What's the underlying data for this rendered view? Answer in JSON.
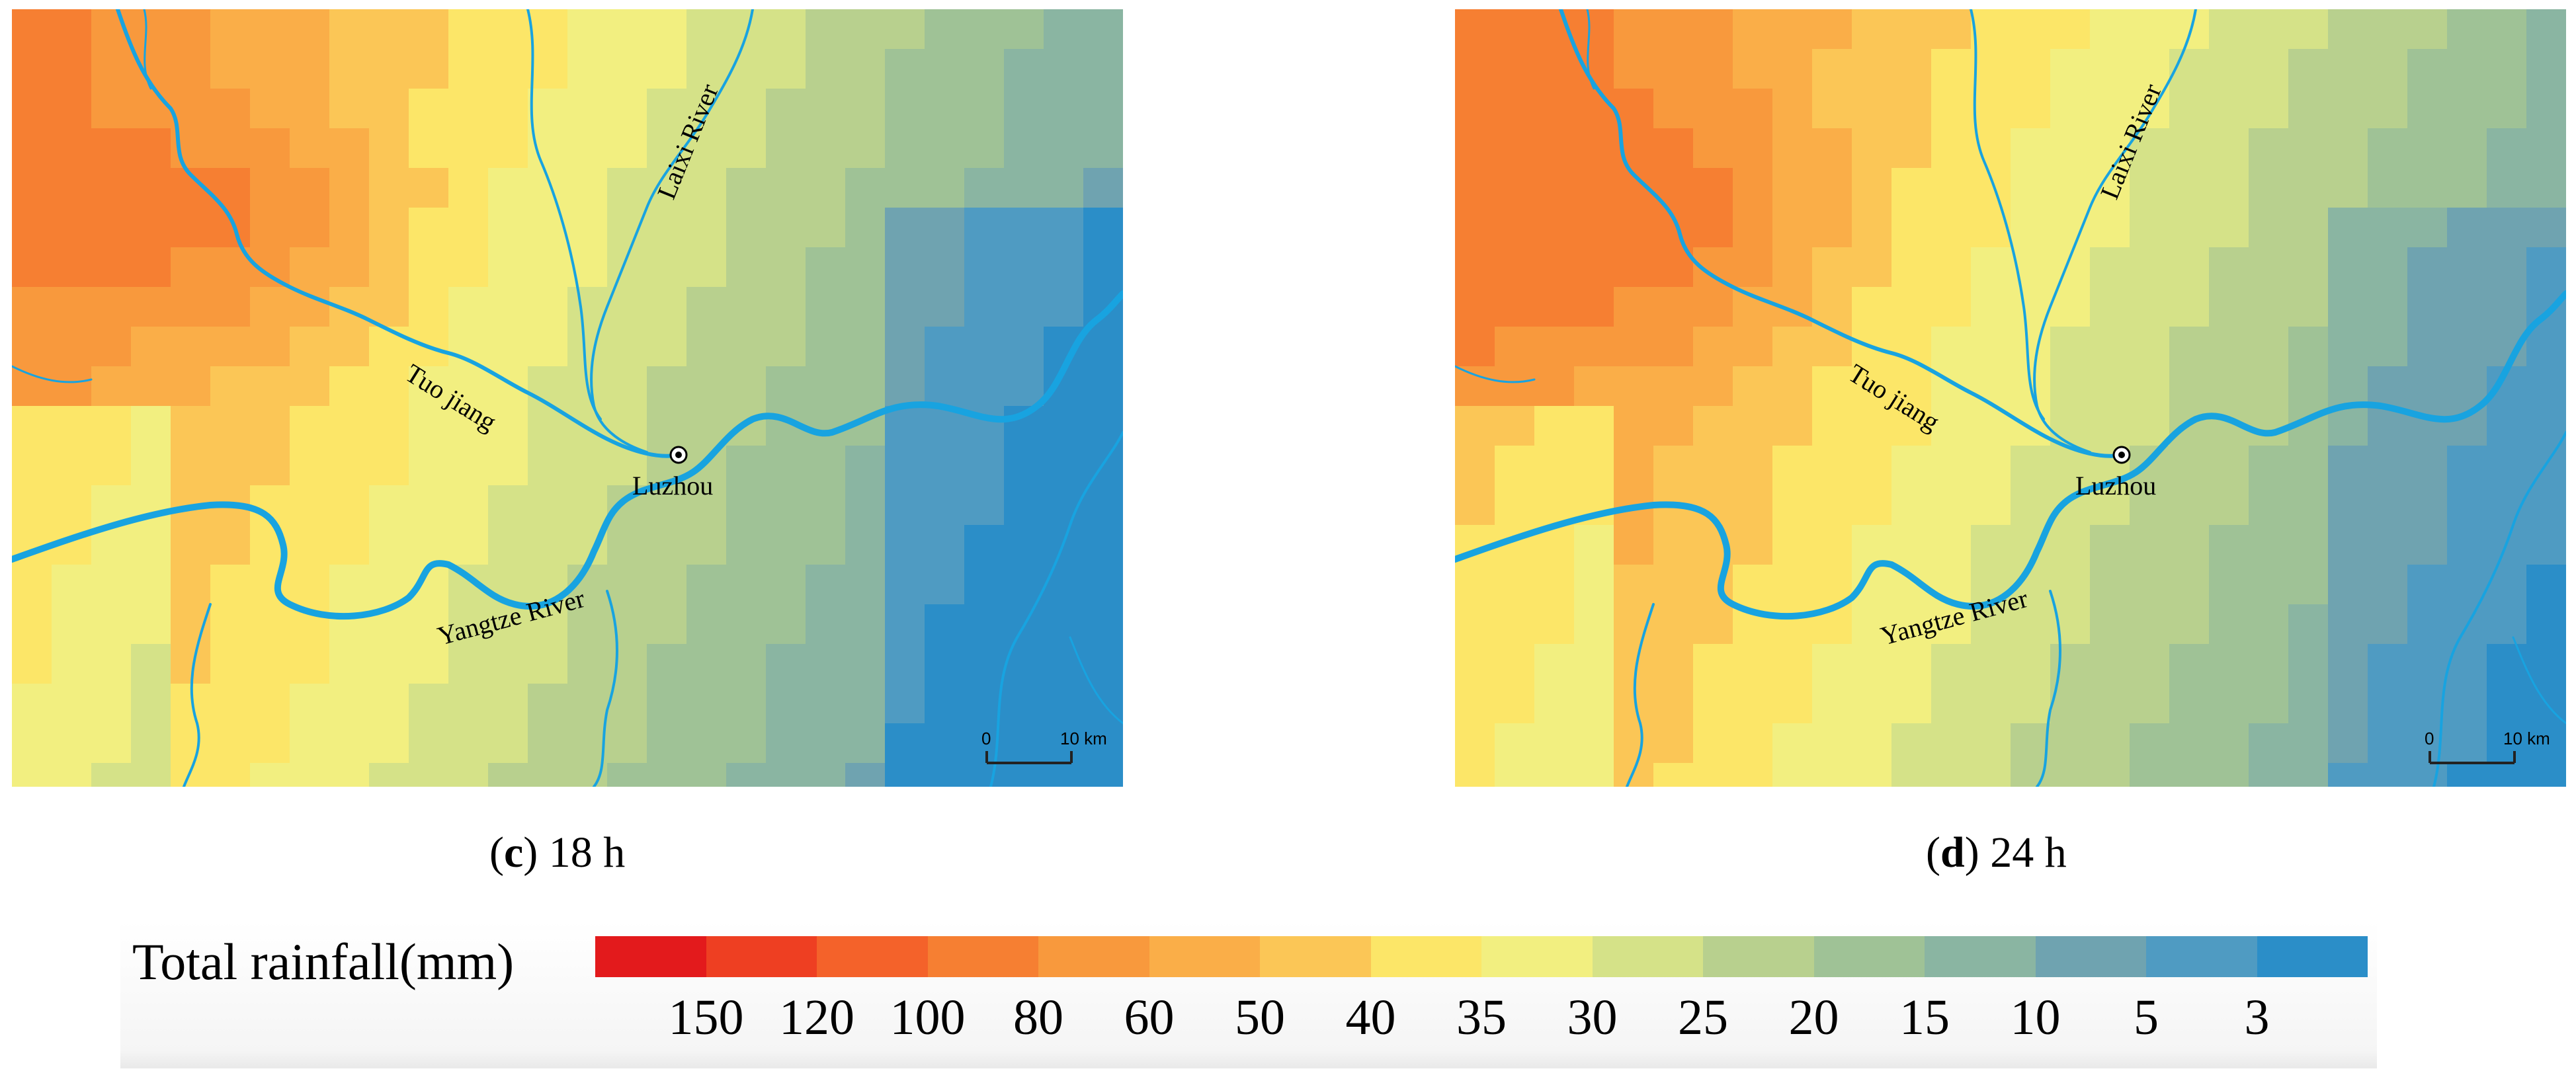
{
  "panels": [
    {
      "id": "c",
      "letter": "c",
      "time": "18 h",
      "labels": {
        "laixi": "Laixi River",
        "tuojiang": "Tuo jiang",
        "city": "Luzhou",
        "yangtze": "Yangtze River"
      },
      "scale": {
        "zero": "0",
        "ten": "10 km"
      }
    },
    {
      "id": "d",
      "letter": "d",
      "time": "24 h",
      "labels": {
        "laixi": "Laixi River",
        "tuojiang": "Tuo jiang",
        "city": "Luzhou",
        "yangtze": "Yangtze River"
      },
      "scale": {
        "zero": "0",
        "ten": "10 km"
      }
    }
  ],
  "legend": {
    "title": "Total rainfall(mm)",
    "colors": [
      "#e31a1c",
      "#ee3f22",
      "#f4622a",
      "#f67f32",
      "#f8993d",
      "#faae48",
      "#fbc656",
      "#fce668",
      "#f2ef80",
      "#d5e288",
      "#b8d08e",
      "#9fc296",
      "#8ab5a2",
      "#6fa3b0",
      "#4f9bc2",
      "#2b8ec8"
    ],
    "labels": [
      "150",
      "120",
      "100",
      "80",
      "60",
      "50",
      "40",
      "35",
      "30",
      "25",
      "20",
      "15",
      "10",
      "5",
      "3"
    ]
  },
  "colors": {
    "river": "#18a3e0",
    "scale": "#222222",
    "text": "#000000"
  }
}
